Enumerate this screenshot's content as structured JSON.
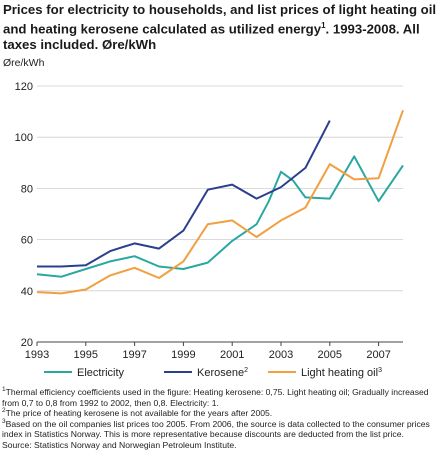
{
  "title_main": "Prices for electricity to households, and list prices of light heating oil and heating kerosene calculated as utilized energy",
  "title_sup": "1",
  "title_tail": ". 1993-2008. All taxes included. Øre/kWh",
  "notes": [
    {
      "sup": "1",
      "text": "Thermal efficiency coefficients used in the figure: Heating kerosene: 0,75. Light heating oil; Gradually increased from 0,7 to 0,8 from 1992 to 2002, then 0,8. Electricity: 1."
    },
    {
      "sup": "2",
      "text": "The price of heating kerosene is not available for the years after 2005."
    },
    {
      "sup": "3",
      "text": "Based on the oil companies list prices too 2005. From 2006, the source is data collected to the consumer prices index in Statistics Norway. This is more representative because discounts are deducted from the list price."
    }
  ],
  "source": "Source: Statistics Norway and Norwegian Petroleum Institute.",
  "chart_data": {
    "type": "line",
    "ylabel": "Øre/kWh",
    "ylim": [
      20,
      120
    ],
    "yticks": [
      20,
      40,
      60,
      80,
      100,
      120
    ],
    "xlim": [
      1993,
      2008
    ],
    "xticks": [
      1993,
      1995,
      1997,
      1999,
      2001,
      2003,
      2005,
      2007
    ],
    "grid": true,
    "legend_position": "bottom",
    "series": [
      {
        "name": "Electricity",
        "sup": "",
        "color": "#2aa8a0",
        "points": [
          [
            1993,
            46.5
          ],
          [
            1994,
            45.5
          ],
          [
            1995,
            48.5
          ],
          [
            1996,
            51.5
          ],
          [
            1997,
            53.5
          ],
          [
            1998,
            49.5
          ],
          [
            1999,
            48.5
          ],
          [
            2000,
            51
          ],
          [
            2001,
            59.5
          ],
          [
            2002,
            66
          ],
          [
            2002.5,
            75
          ],
          [
            2003,
            86.5
          ],
          [
            2003.5,
            83
          ],
          [
            2004,
            76.5
          ],
          [
            2005,
            76
          ],
          [
            2006,
            92.5
          ],
          [
            2007,
            75
          ],
          [
            2008,
            89
          ]
        ]
      },
      {
        "name": "Kerosene",
        "sup": "2",
        "color": "#2b3f8f",
        "points": [
          [
            1993,
            49.5
          ],
          [
            1994,
            49.5
          ],
          [
            1995,
            50
          ],
          [
            1996,
            55.5
          ],
          [
            1997,
            58.5
          ],
          [
            1998,
            56.5
          ],
          [
            1999,
            63.5
          ],
          [
            2000,
            79.5
          ],
          [
            2001,
            81.5
          ],
          [
            2002,
            76
          ],
          [
            2003,
            80.5
          ],
          [
            2004,
            88
          ],
          [
            2005,
            106.5
          ]
        ]
      },
      {
        "name": "Light heating oil",
        "sup": "3",
        "color": "#f0a040",
        "points": [
          [
            1993,
            39.5
          ],
          [
            1994,
            39
          ],
          [
            1995,
            40.5
          ],
          [
            1996,
            46
          ],
          [
            1997,
            49
          ],
          [
            1998,
            45
          ],
          [
            1999,
            51.5
          ],
          [
            2000,
            66
          ],
          [
            2001,
            67.5
          ],
          [
            2002,
            61
          ],
          [
            2003,
            67.5
          ],
          [
            2004,
            72.5
          ],
          [
            2005,
            89.5
          ],
          [
            2006,
            83.5
          ],
          [
            2007,
            84
          ],
          [
            2008,
            110.5
          ]
        ]
      }
    ]
  }
}
